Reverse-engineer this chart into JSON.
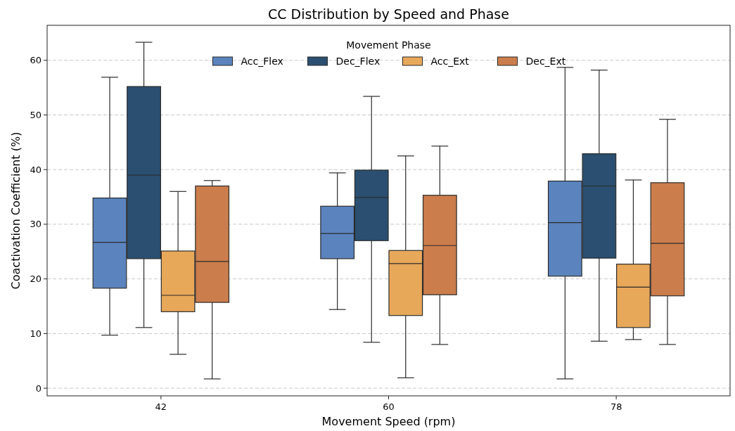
{
  "chart_data": {
    "type": "box",
    "title": "CC Distribution by Speed and Phase",
    "xlabel": "Movement Speed (rpm)",
    "ylabel": "Coactivation Coefficient (%)",
    "legend_title": "Movement Phase",
    "legend": "top",
    "grid": "y",
    "categories": [
      "42",
      "60",
      "78"
    ],
    "ylim": [
      -1.4,
      66.4
    ],
    "yticks": [
      0,
      10,
      20,
      30,
      40,
      50,
      60
    ],
    "series": [
      {
        "name": "Acc_Flex",
        "color": "#5b84be",
        "boxes": [
          {
            "low": 9.7,
            "q1": 18.3,
            "median": 26.7,
            "q3": 34.8,
            "high": 56.9
          },
          {
            "low": 14.4,
            "q1": 23.7,
            "median": 28.3,
            "q3": 33.3,
            "high": 39.4
          },
          {
            "low": 1.7,
            "q1": 20.5,
            "median": 30.3,
            "q3": 37.9,
            "high": 58.7
          }
        ]
      },
      {
        "name": "Dec_Flex",
        "color": "#2a4f70",
        "boxes": [
          {
            "low": 11.1,
            "q1": 23.7,
            "median": 39.0,
            "q3": 55.2,
            "high": 63.3
          },
          {
            "low": 8.4,
            "q1": 27.0,
            "median": 34.9,
            "q3": 39.9,
            "high": 53.4
          },
          {
            "low": 8.6,
            "q1": 23.8,
            "median": 37.0,
            "q3": 42.9,
            "high": 58.2
          }
        ]
      },
      {
        "name": "Acc_Ext",
        "color": "#e8a85a",
        "boxes": [
          {
            "low": 6.2,
            "q1": 14.0,
            "median": 17.0,
            "q3": 25.1,
            "high": 36.0
          },
          {
            "low": 1.9,
            "q1": 13.3,
            "median": 22.8,
            "q3": 25.2,
            "high": 42.5
          },
          {
            "low": 8.9,
            "q1": 11.1,
            "median": 18.5,
            "q3": 22.7,
            "high": 38.1
          }
        ]
      },
      {
        "name": "Dec_Ext",
        "color": "#cb7d4c",
        "boxes": [
          {
            "low": 1.7,
            "q1": 15.7,
            "median": 23.2,
            "q3": 37.0,
            "high": 38.0
          },
          {
            "low": 8.0,
            "q1": 17.1,
            "median": 26.1,
            "q3": 35.3,
            "high": 44.3
          },
          {
            "low": 8.0,
            "q1": 16.9,
            "median": 26.5,
            "q3": 37.6,
            "high": 49.2
          }
        ]
      }
    ]
  }
}
